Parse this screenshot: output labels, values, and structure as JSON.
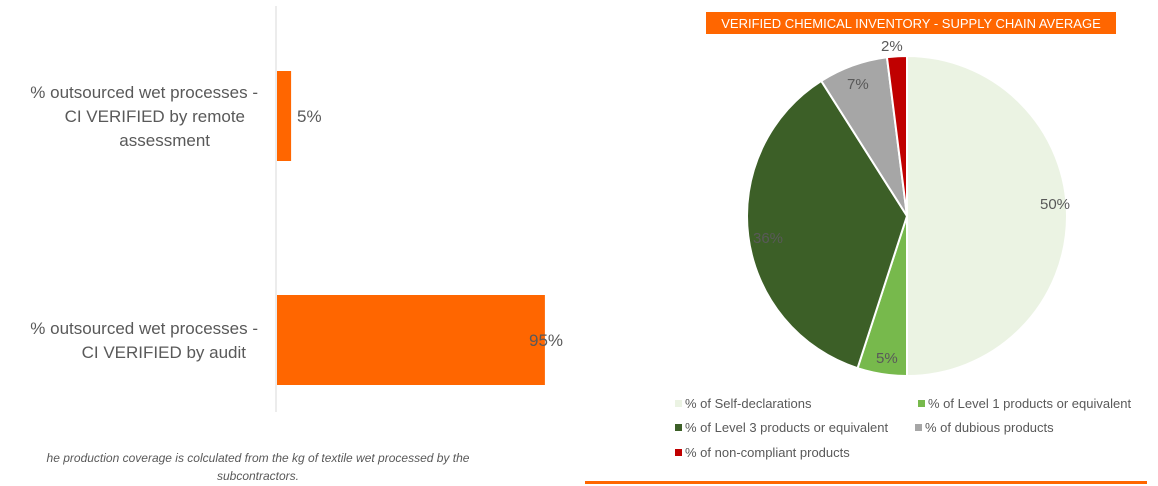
{
  "chart_data": [
    {
      "type": "bar",
      "orientation": "horizontal",
      "categories": [
        "% outsourced wet processes - CI VERIFIED by remote assessment",
        "% outsourced wet processes - CI VERIFIED by audit"
      ],
      "category_lines": [
        [
          "% outsourced wet processes -",
          "CI VERIFIED by remote",
          "assessment"
        ],
        [
          "% outsourced wet processes -",
          "CI VERIFIED by audit"
        ]
      ],
      "values": [
        5,
        95
      ],
      "value_labels": [
        "5%",
        "95%"
      ],
      "xlim": [
        0,
        100
      ],
      "bar_color": "#ff6600",
      "grid": false,
      "footnote_lines": [
        "he production coverage is colculated from the kg of textile wet processed by the",
        "subcontractors."
      ]
    },
    {
      "type": "pie",
      "title": "VERIFIED CHEMICAL INVENTORY - SUPPLY CHAIN AVERAGE",
      "title_bg_color": "#ff6600",
      "slices": [
        {
          "label": "% of Self-declarations",
          "value": 50,
          "value_label": "50%",
          "color": "#ebf3e3"
        },
        {
          "label": "% of Level 1 products or equivalent",
          "value": 5,
          "value_label": "5%",
          "color": "#77b94c"
        },
        {
          "label": "% of Level 3 products or equivalent",
          "value": 36,
          "value_label": "36%",
          "color": "#3c5f27"
        },
        {
          "label": "% of dubious products",
          "value": 7,
          "value_label": "7%",
          "color": "#a6a6a6"
        },
        {
          "label": "% of non-compliant products",
          "value": 2,
          "value_label": "2%",
          "color": "#c00000"
        }
      ],
      "legend_position": "bottom",
      "rule_color": "#ff6600"
    }
  ]
}
